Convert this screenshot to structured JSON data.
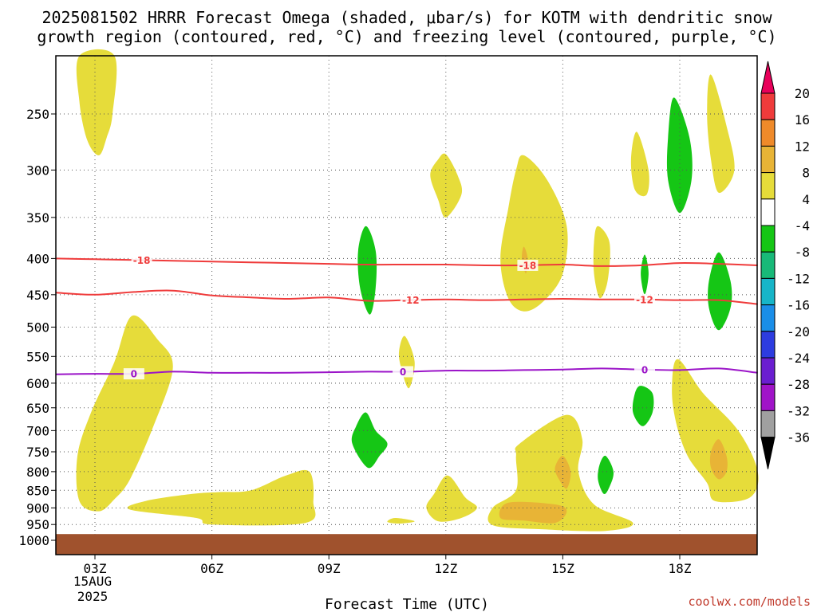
{
  "chart_data": {
    "type": "time-height",
    "title_line1": "2025081502 HRRR Forecast Omega (shaded, μbar/s) for KOTM with dendritic snow",
    "title_line2": "growth region (contoured, red, °C) and freezing level (contoured, purple, °C)",
    "xlabel": "Forecast Time (UTC)",
    "x_ticks": [
      {
        "hour": 3,
        "label": "03Z"
      },
      {
        "hour": 6,
        "label": "06Z"
      },
      {
        "hour": 9,
        "label": "09Z"
      },
      {
        "hour": 12,
        "label": "12Z"
      },
      {
        "hour": 15,
        "label": "15Z"
      },
      {
        "hour": 18,
        "label": "18Z"
      }
    ],
    "date_label_1": "15AUG",
    "date_label_2": "2025",
    "x_range_hours": [
      2,
      20
    ],
    "y_ticks": [
      250,
      300,
      350,
      400,
      450,
      500,
      550,
      600,
      650,
      700,
      750,
      800,
      850,
      900,
      950,
      1000
    ],
    "y_range_hpa": [
      200,
      1025
    ],
    "surface_hpa": 980,
    "colorbar": {
      "labels": [
        "20",
        "16",
        "12",
        "8",
        "4",
        "-4",
        "-8",
        "-12",
        "-16",
        "-20",
        "-24",
        "-28",
        "-32",
        "-36"
      ],
      "colors": [
        "#e8005a",
        "#ef3b3b",
        "#ef8a2a",
        "#e8b436",
        "#e6dc3a",
        "#ffffff",
        "#15c615",
        "#18b978",
        "#16b5c8",
        "#1a8ee8",
        "#2d3ce0",
        "#6a1ed0",
        "#a014c8",
        "#a0a0a0",
        "#000000"
      ]
    },
    "colors": {
      "rising_4_8": "#e6dc3a",
      "rising_8_12": "#e8b436",
      "sinking_4_8": "#15c615",
      "surface": "#a0522d",
      "dgz": "#ef3b3b",
      "freezing": "#9b14c8"
    },
    "isotherms": [
      {
        "name": "-18",
        "color": "#ef3b3b",
        "points": [
          [
            2.0,
            400
          ],
          [
            3.0,
            401
          ],
          [
            4.0,
            402
          ],
          [
            5.0,
            403
          ],
          [
            6.0,
            404
          ],
          [
            7.0,
            405
          ],
          [
            8.0,
            406
          ],
          [
            9.0,
            407
          ],
          [
            10.0,
            408
          ],
          [
            11.0,
            408
          ],
          [
            12.0,
            408
          ],
          [
            13.0,
            409
          ],
          [
            14.0,
            409
          ],
          [
            15.0,
            408
          ],
          [
            16.0,
            410
          ],
          [
            17.0,
            409
          ],
          [
            18.0,
            406
          ],
          [
            19.0,
            407
          ],
          [
            20.0,
            409
          ]
        ],
        "labels": [
          [
            4.2,
            402
          ],
          [
            14.1,
            409
          ]
        ]
      },
      {
        "name": "-12",
        "color": "#ef3b3b",
        "points": [
          [
            2.0,
            447
          ],
          [
            3.0,
            450
          ],
          [
            4.0,
            446
          ],
          [
            5.0,
            444
          ],
          [
            6.0,
            451
          ],
          [
            7.0,
            454
          ],
          [
            8.0,
            456
          ],
          [
            9.0,
            454
          ],
          [
            10.0,
            459
          ],
          [
            11.0,
            458
          ],
          [
            12.0,
            457
          ],
          [
            13.0,
            458
          ],
          [
            14.0,
            457
          ],
          [
            15.0,
            456
          ],
          [
            16.0,
            457
          ],
          [
            17.0,
            457
          ],
          [
            18.0,
            458
          ],
          [
            19.0,
            458
          ],
          [
            20.0,
            464
          ]
        ],
        "labels": [
          [
            11.1,
            458
          ],
          [
            17.1,
            457
          ]
        ]
      },
      {
        "name": "0",
        "color": "#9b14c8",
        "points": [
          [
            2.0,
            583
          ],
          [
            3.0,
            582
          ],
          [
            4.0,
            582
          ],
          [
            5.0,
            578
          ],
          [
            6.0,
            580
          ],
          [
            7.0,
            580
          ],
          [
            8.0,
            580
          ],
          [
            9.0,
            579
          ],
          [
            10.0,
            578
          ],
          [
            11.0,
            578
          ],
          [
            12.0,
            576
          ],
          [
            13.0,
            576
          ],
          [
            14.0,
            575
          ],
          [
            15.0,
            574
          ],
          [
            16.0,
            572
          ],
          [
            17.0,
            574
          ],
          [
            18.0,
            575
          ],
          [
            19.0,
            572
          ],
          [
            20.0,
            580
          ]
        ],
        "labels": [
          [
            4.0,
            582
          ],
          [
            10.9,
            578
          ],
          [
            17.1,
            574
          ]
        ]
      }
    ],
    "omega_regions": [
      {
        "level": "4",
        "color": "#e6dc3a",
        "points": [
          [
            2.6,
            205
          ],
          [
            3.5,
            205
          ],
          [
            3.45,
            250
          ],
          [
            3.3,
            270
          ],
          [
            3.1,
            286
          ],
          [
            2.8,
            272
          ],
          [
            2.6,
            240
          ]
        ]
      },
      {
        "level": "4",
        "color": "#e6dc3a",
        "points": [
          [
            3.95,
            482
          ],
          [
            4.6,
            520
          ],
          [
            5.0,
            570
          ],
          [
            4.5,
            690
          ],
          [
            3.9,
            820
          ],
          [
            3.5,
            875
          ],
          [
            3.1,
            910
          ],
          [
            2.6,
            880
          ],
          [
            2.55,
            760
          ],
          [
            2.9,
            660
          ],
          [
            3.5,
            560
          ]
        ]
      },
      {
        "level": "4",
        "color": "#e6dc3a",
        "points": [
          [
            3.9,
            905
          ],
          [
            4.3,
            880
          ],
          [
            5.5,
            860
          ],
          [
            6.2,
            855
          ],
          [
            7.0,
            850
          ],
          [
            7.9,
            810
          ],
          [
            8.5,
            800
          ],
          [
            8.6,
            880
          ],
          [
            8.4,
            945
          ],
          [
            6.0,
            950
          ],
          [
            5.6,
            930
          ]
        ]
      },
      {
        "level": "4",
        "color": "#e6dc3a",
        "points": [
          [
            12.0,
            285
          ],
          [
            12.3,
            305
          ],
          [
            12.4,
            325
          ],
          [
            12.0,
            350
          ],
          [
            11.8,
            330
          ],
          [
            11.6,
            305
          ],
          [
            11.8,
            290
          ]
        ]
      },
      {
        "level": "4",
        "color": "#e6dc3a",
        "points": [
          [
            10.7,
            930
          ],
          [
            11.2,
            940
          ],
          [
            10.8,
            947
          ],
          [
            10.5,
            942
          ]
        ]
      },
      {
        "level": "4",
        "color": "#e6dc3a",
        "points": [
          [
            10.95,
            515
          ],
          [
            11.2,
            560
          ],
          [
            11.05,
            610
          ],
          [
            10.85,
            570
          ],
          [
            10.8,
            540
          ]
        ]
      },
      {
        "level": "4",
        "color": "#e6dc3a",
        "points": [
          [
            12.05,
            810
          ],
          [
            12.5,
            870
          ],
          [
            12.8,
            900
          ],
          [
            12.4,
            930
          ],
          [
            11.8,
            940
          ],
          [
            11.5,
            900
          ],
          [
            11.7,
            860
          ]
        ]
      },
      {
        "level": "4",
        "color": "#e6dc3a",
        "points": [
          [
            14.0,
            286
          ],
          [
            14.6,
            310
          ],
          [
            15.1,
            360
          ],
          [
            15.0,
            420
          ],
          [
            14.5,
            460
          ],
          [
            14.0,
            475
          ],
          [
            13.6,
            455
          ],
          [
            13.4,
            400
          ],
          [
            13.6,
            340
          ],
          [
            13.8,
            300
          ]
        ]
      },
      {
        "level": "4",
        "color": "#e6dc3a",
        "points": [
          [
            13.9,
            730
          ],
          [
            15.1,
            665
          ],
          [
            15.5,
            720
          ],
          [
            15.4,
            800
          ],
          [
            15.8,
            890
          ],
          [
            16.8,
            945
          ],
          [
            16.1,
            970
          ],
          [
            14.5,
            965
          ],
          [
            13.2,
            952
          ],
          [
            13.2,
            900
          ],
          [
            13.8,
            850
          ],
          [
            13.8,
            760
          ]
        ]
      },
      {
        "level": "4",
        "color": "#e6dc3a",
        "points": [
          [
            15.9,
            360
          ],
          [
            16.2,
            380
          ],
          [
            16.15,
            430
          ],
          [
            15.95,
            455
          ],
          [
            15.8,
            420
          ],
          [
            15.8,
            380
          ]
        ]
      },
      {
        "level": "4",
        "color": "#e6dc3a",
        "points": [
          [
            16.9,
            265
          ],
          [
            17.2,
            300
          ],
          [
            17.15,
            325
          ],
          [
            16.85,
            320
          ],
          [
            16.75,
            290
          ]
        ]
      },
      {
        "level": "4",
        "color": "#e6dc3a",
        "points": [
          [
            18.8,
            220
          ],
          [
            19.2,
            260
          ],
          [
            19.4,
            300
          ],
          [
            19.0,
            323
          ],
          [
            18.8,
            290
          ],
          [
            18.7,
            250
          ]
        ]
      },
      {
        "level": "4",
        "color": "#e6dc3a",
        "points": [
          [
            17.95,
            555
          ],
          [
            18.6,
            620
          ],
          [
            19.5,
            700
          ],
          [
            20.0,
            800
          ],
          [
            19.8,
            870
          ],
          [
            18.9,
            880
          ],
          [
            18.7,
            830
          ],
          [
            18.2,
            760
          ],
          [
            17.9,
            680
          ],
          [
            17.8,
            610
          ]
        ]
      },
      {
        "level": "8",
        "color": "#e8b436",
        "points": [
          [
            13.6,
            885
          ],
          [
            14.8,
            890
          ],
          [
            15.1,
            910
          ],
          [
            14.8,
            945
          ],
          [
            14.0,
            938
          ],
          [
            13.4,
            930
          ]
        ]
      },
      {
        "level": "8",
        "color": "#e8b436",
        "points": [
          [
            15.0,
            760
          ],
          [
            15.2,
            800
          ],
          [
            15.1,
            845
          ],
          [
            14.9,
            820
          ],
          [
            14.8,
            790
          ]
        ]
      },
      {
        "level": "8",
        "color": "#e8b436",
        "points": [
          [
            14.0,
            385
          ],
          [
            14.1,
            400
          ],
          [
            14.05,
            420
          ],
          [
            13.95,
            400
          ]
        ]
      },
      {
        "level": "8",
        "color": "#e8b436",
        "points": [
          [
            19.0,
            720
          ],
          [
            19.2,
            760
          ],
          [
            19.2,
            800
          ],
          [
            19.0,
            820
          ],
          [
            18.8,
            790
          ],
          [
            18.8,
            750
          ]
        ]
      },
      {
        "level": "-4",
        "color": "#15c615",
        "points": [
          [
            9.95,
            360
          ],
          [
            10.2,
            390
          ],
          [
            10.2,
            440
          ],
          [
            10.05,
            480
          ],
          [
            9.8,
            440
          ],
          [
            9.75,
            390
          ]
        ]
      },
      {
        "level": "-4",
        "color": "#15c615",
        "points": [
          [
            9.95,
            660
          ],
          [
            10.2,
            700
          ],
          [
            10.5,
            730
          ],
          [
            10.3,
            760
          ],
          [
            10.0,
            790
          ],
          [
            9.6,
            730
          ],
          [
            9.7,
            690
          ]
        ]
      },
      {
        "level": "-4",
        "color": "#15c615",
        "points": [
          [
            17.85,
            237
          ],
          [
            18.25,
            270
          ],
          [
            18.3,
            310
          ],
          [
            18.0,
            345
          ],
          [
            17.7,
            310
          ],
          [
            17.7,
            270
          ]
        ]
      },
      {
        "level": "-4",
        "color": "#15c615",
        "points": [
          [
            17.1,
            395
          ],
          [
            17.2,
            420
          ],
          [
            17.1,
            450
          ],
          [
            17.0,
            420
          ]
        ]
      },
      {
        "level": "-4",
        "color": "#15c615",
        "points": [
          [
            19.0,
            392
          ],
          [
            19.3,
            430
          ],
          [
            19.3,
            470
          ],
          [
            19.0,
            505
          ],
          [
            18.75,
            470
          ],
          [
            18.75,
            430
          ]
        ]
      },
      {
        "level": "-4",
        "color": "#15c615",
        "points": [
          [
            17.0,
            605
          ],
          [
            17.3,
            620
          ],
          [
            17.3,
            660
          ],
          [
            17.05,
            690
          ],
          [
            16.8,
            660
          ],
          [
            16.85,
            620
          ]
        ]
      },
      {
        "level": "-4",
        "color": "#15c615",
        "points": [
          [
            16.1,
            760
          ],
          [
            16.3,
            800
          ],
          [
            16.2,
            840
          ],
          [
            16.05,
            860
          ],
          [
            15.9,
            820
          ],
          [
            15.95,
            780
          ]
        ]
      }
    ]
  },
  "credit": "coolwx.com/models"
}
